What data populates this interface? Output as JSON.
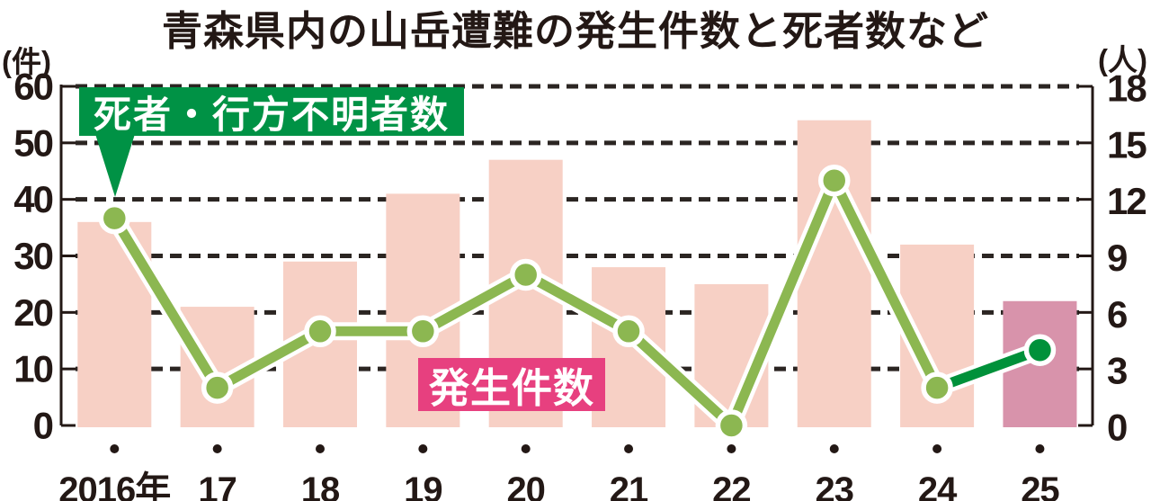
{
  "title": "青森県内の山岳遭難の発生件数と死者数など",
  "axes_units": {
    "left": "(件)",
    "right": "(人)"
  },
  "legend": {
    "deaths_label": "死者・行方不明者数",
    "incidents_label": "発生件数"
  },
  "chart_data": {
    "type": "bar+line",
    "title": "青森県内の山岳遭難の発生件数と死者数など",
    "categories": [
      "2016年",
      "17",
      "18",
      "19",
      "20",
      "21",
      "22",
      "23",
      "24",
      "25"
    ],
    "series": [
      {
        "name": "発生件数",
        "type": "bar",
        "axis": "left",
        "values": [
          36,
          21,
          29,
          41,
          47,
          28,
          25,
          54,
          32,
          22
        ]
      },
      {
        "name": "死者・行方不明者数",
        "type": "line",
        "axis": "right",
        "values": [
          11,
          2,
          5,
          5,
          8,
          5,
          0,
          13,
          2,
          4
        ]
      }
    ],
    "left_axis": {
      "unit": "件",
      "range": [
        0,
        60
      ],
      "ticks": [
        0,
        10,
        20,
        30,
        40,
        50,
        60
      ]
    },
    "right_axis": {
      "unit": "人",
      "range": [
        0,
        18
      ],
      "ticks": [
        0,
        3,
        6,
        9,
        12,
        15,
        18
      ]
    },
    "grid": "dashed-horizontal",
    "legend_position": "inside",
    "highlight_last_category": true
  },
  "colors": {
    "bar": "#f7d0c5",
    "bar_highlight": "#d893ab",
    "line": "#8cb751",
    "line_highlight": "#00913a",
    "legend_deaths_bg": "#009245",
    "legend_incidents_bg": "#e7407f",
    "ink": "#231815",
    "grid": "#2b2522",
    "background": "#ffffff"
  }
}
